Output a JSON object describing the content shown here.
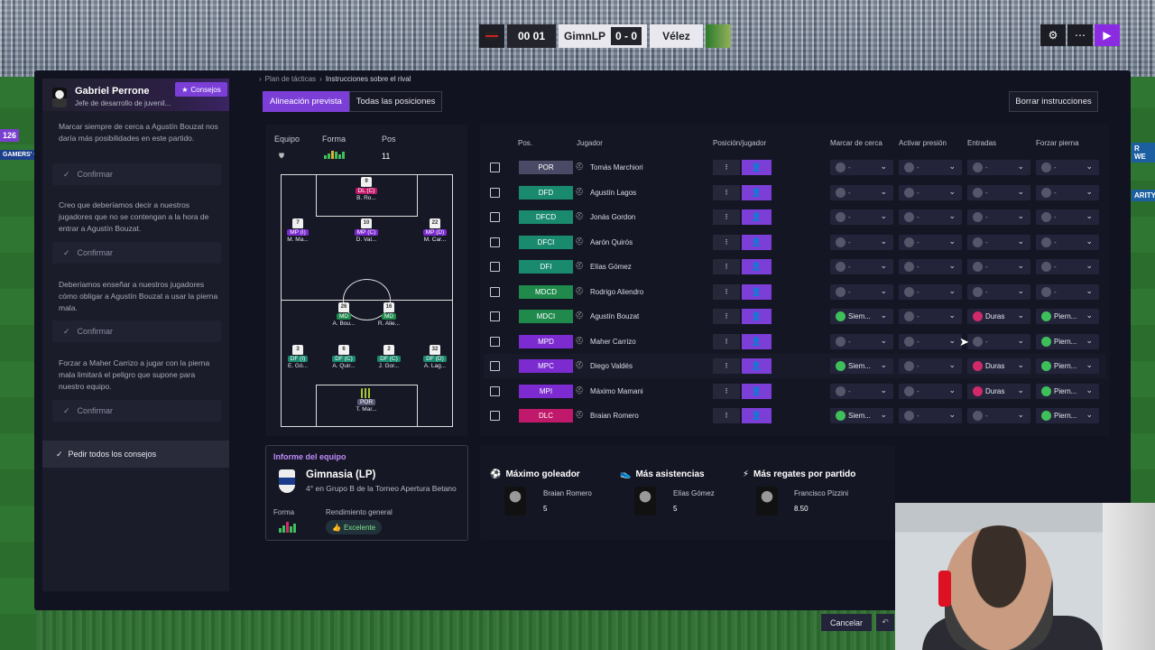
{
  "scorebar": {
    "clock": "00 01",
    "home": "GimnLP",
    "score": "0 - 0",
    "away": "Vélez"
  },
  "top_buttons": [
    "gear-icon",
    "more-icon",
    "play-icon"
  ],
  "side_banners": [
    "126",
    "GAMERS' CH",
    "R WE",
    "ARITY"
  ],
  "coach": {
    "name": "Gabriel Perrone",
    "role": "Jefe de desarrollo de juvenil...",
    "tips_label": "Consejos"
  },
  "tips": [
    {
      "text": "Marcar siempre de cerca a Agustín Bouzat nos daría más posibilidades en este partido.",
      "confirm": "Confirmar"
    },
    {
      "text": "Creo que deberíamos decir a nuestros jugadores que no se contengan a la hora de entrar a Agustín Bouzat.",
      "confirm": "Confirmar"
    },
    {
      "text": "Deberíamos enseñar a nuestros jugadores cómo obligar a Agustín Bouzat a usar la pierna mala.",
      "confirm": "Confirmar"
    },
    {
      "text": "Forzar a Maher Carrizo a jugar con la pierna mala limitará el peligro que supone para nuestro equipo.",
      "confirm": "Confirmar"
    }
  ],
  "ask_all": "Pedir todos los consejos",
  "breadcrumb": {
    "parent": "Plan de tácticas",
    "current": "Instrucciones sobre el rival"
  },
  "tabs": {
    "active": "Alineación prevista",
    "other": "Todas las posiciones"
  },
  "clear_button": "Borrar instrucciones",
  "formation": {
    "labels": {
      "team": "Equipo",
      "form": "Forma",
      "pos": "Pos"
    },
    "pos_value": "11",
    "players": [
      {
        "num": "9",
        "pos": "DL (C)",
        "name": "B. Ro...",
        "color": "#c0186a"
      },
      {
        "num": "7",
        "pos": "MP (I)",
        "name": "M. Ma...",
        "color": "#7b2bd0"
      },
      {
        "num": "10",
        "pos": "MP (C)",
        "name": "D. Val...",
        "color": "#7b2bd0"
      },
      {
        "num": "22",
        "pos": "MP (D)",
        "name": "M. Car...",
        "color": "#7b2bd0"
      },
      {
        "num": "26",
        "pos": "MD",
        "name": "A. Bou...",
        "color": "#1f8a4c"
      },
      {
        "num": "16",
        "pos": "MD",
        "name": "R. Alie...",
        "color": "#1f8a4c"
      },
      {
        "num": "3",
        "pos": "DF (I)",
        "name": "E. Gó...",
        "color": "#1a8a6e"
      },
      {
        "num": "6",
        "pos": "DF (C)",
        "name": "A. Quir...",
        "color": "#1a8a6e"
      },
      {
        "num": "2",
        "pos": "DF (C)",
        "name": "J. Gor...",
        "color": "#1a8a6e"
      },
      {
        "num": "32",
        "pos": "DF (D)",
        "name": "A. Lag...",
        "color": "#1a8a6e"
      },
      {
        "num": "",
        "pos": "POR",
        "name": "T. Mar...",
        "color": "#5a5a74"
      }
    ]
  },
  "table": {
    "headers": {
      "pos": "Pos.",
      "player": "Jugador",
      "role": "Posición/jugador",
      "mark": "Marcar de cerca",
      "press": "Activar presión",
      "tackle": "Entradas",
      "foot": "Forzar pierna"
    },
    "rows": [
      {
        "pos": "POR",
        "color": "#4a4a66",
        "name": "Tomás Marchiori",
        "mark": "-",
        "press": "-",
        "tackle": "-",
        "foot": "-"
      },
      {
        "pos": "DFD",
        "color": "#1a8a6e",
        "name": "Agustín Lagos",
        "mark": "-",
        "press": "-",
        "tackle": "-",
        "foot": "-"
      },
      {
        "pos": "DFCD",
        "color": "#1a8a6e",
        "name": "Jonás Gordon",
        "mark": "-",
        "press": "-",
        "tackle": "-",
        "foot": "-"
      },
      {
        "pos": "DFCI",
        "color": "#1a8a6e",
        "name": "Aarón Quirós",
        "mark": "-",
        "press": "-",
        "tackle": "-",
        "foot": "-"
      },
      {
        "pos": "DFI",
        "color": "#1a8a6e",
        "name": "Elías Gómez",
        "mark": "-",
        "press": "-",
        "tackle": "-",
        "foot": "-"
      },
      {
        "pos": "MDCD",
        "color": "#1f8a4c",
        "name": "Rodrigo Aliendro",
        "mark": "-",
        "press": "-",
        "tackle": "-",
        "foot": "-"
      },
      {
        "pos": "MDCI",
        "color": "#1f8a4c",
        "name": "Agustín Bouzat",
        "mark": "Siem...",
        "press": "-",
        "tackle": "Duras",
        "foot": "Piern..."
      },
      {
        "pos": "MPD",
        "color": "#7b2bd0",
        "name": "Maher Carrizo",
        "mark": "-",
        "press": "-",
        "tackle": "-",
        "foot": "Piern..."
      },
      {
        "pos": "MPC",
        "color": "#7b2bd0",
        "name": "Diego Valdés",
        "mark": "Siem...",
        "press": "-",
        "tackle": "Duras",
        "foot": "Piern..."
      },
      {
        "pos": "MPI",
        "color": "#7b2bd0",
        "name": "Máximo Mamani",
        "mark": "-",
        "press": "-",
        "tackle": "Duras",
        "foot": "Piern..."
      },
      {
        "pos": "DLC",
        "color": "#c0186a",
        "name": "Braian Romero",
        "mark": "Siem...",
        "press": "-",
        "tackle": "-",
        "foot": "Piern..."
      }
    ]
  },
  "report": {
    "title": "Informe del equipo",
    "team": "Gimnasia (LP)",
    "subtitle": "4° en Grupo B de la Torneo Apertura Betano",
    "form_label": "Forma",
    "performance_label": "Rendimiento general",
    "performance_value": "Excelente"
  },
  "stats": [
    {
      "title": "Máximo goleador",
      "icon": "goal-icon",
      "player": "Braian Romero",
      "value": "5"
    },
    {
      "title": "Más asistencias",
      "icon": "assist-icon",
      "player": "Elías Gómez",
      "value": "5"
    },
    {
      "title": "Más regates por partido",
      "icon": "dribble-icon",
      "player": "Francisco Pizzini",
      "value": "8.50"
    }
  ],
  "footer": {
    "cancel": "Cancelar"
  },
  "colors": {
    "accent": "#7b3fd8",
    "panel": "#121320"
  }
}
